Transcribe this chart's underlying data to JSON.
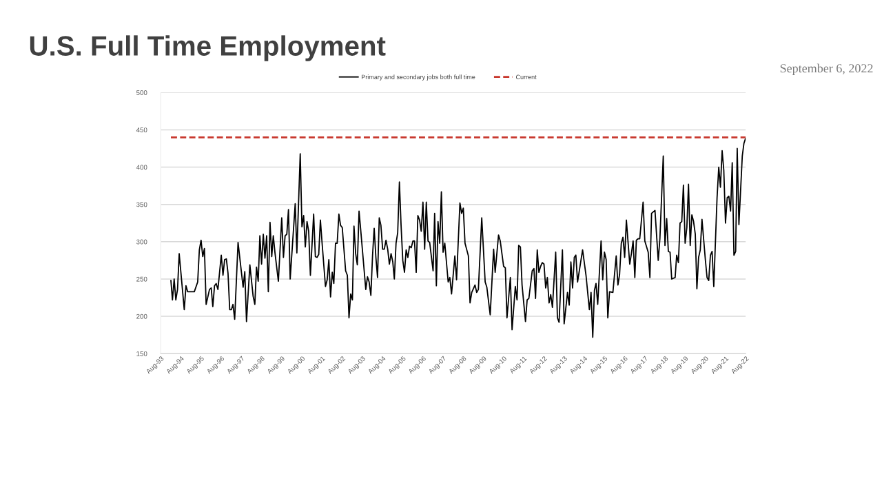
{
  "chart_data": {
    "type": "line",
    "title": "U.S. Full Time Employment",
    "annotations": [
      "September 6, 2022"
    ],
    "xlim": [
      "1993-08",
      "2022-08"
    ],
    "xticks": [
      {
        "value": "1993-08",
        "label": "Aug-93"
      },
      {
        "value": "1994-08",
        "label": "Aug-94"
      },
      {
        "value": "1995-08",
        "label": "Aug-95"
      },
      {
        "value": "1996-08",
        "label": "Aug-96"
      },
      {
        "value": "1997-08",
        "label": "Aug-97"
      },
      {
        "value": "1998-08",
        "label": "Aug-98"
      },
      {
        "value": "1999-08",
        "label": "Aug-99"
      },
      {
        "value": "2000-08",
        "label": "Aug-00"
      },
      {
        "value": "2001-08",
        "label": "Aug-01"
      },
      {
        "value": "2002-08",
        "label": "Aug-02"
      },
      {
        "value": "2003-08",
        "label": "Aug-03"
      },
      {
        "value": "2004-08",
        "label": "Aug-04"
      },
      {
        "value": "2005-08",
        "label": "Aug-05"
      },
      {
        "value": "2006-08",
        "label": "Aug-06"
      },
      {
        "value": "2007-08",
        "label": "Aug-07"
      },
      {
        "value": "2008-08",
        "label": "Aug-08"
      },
      {
        "value": "2009-08",
        "label": "Aug-09"
      },
      {
        "value": "2010-08",
        "label": "Aug-10"
      },
      {
        "value": "2011-08",
        "label": "Aug-11"
      },
      {
        "value": "2012-08",
        "label": "Aug-12"
      },
      {
        "value": "2013-08",
        "label": "Aug-13"
      },
      {
        "value": "2014-08",
        "label": "Aug-14"
      },
      {
        "value": "2015-08",
        "label": "Aug-15"
      },
      {
        "value": "2016-08",
        "label": "Aug-16"
      },
      {
        "value": "2017-08",
        "label": "Aug-17"
      },
      {
        "value": "2018-08",
        "label": "Aug-18"
      },
      {
        "value": "2019-08",
        "label": "Aug-19"
      },
      {
        "value": "2020-08",
        "label": "Aug-20"
      },
      {
        "value": "2021-08",
        "label": "Aug-21"
      },
      {
        "value": "2022-08",
        "label": "Aug-22"
      }
    ],
    "ylim": [
      150,
      500
    ],
    "yticks": [
      150,
      200,
      250,
      300,
      350,
      400,
      450,
      500
    ],
    "grid": "y",
    "legend": "top",
    "series": [
      {
        "name": "Primary and secondary jobs both full time",
        "color": "#000000",
        "line_style": "solid",
        "x": [
          "1994-02",
          "1994-03",
          "1994-04",
          "1994-05",
          "1994-06",
          "1994-07",
          "1994-10",
          "1994-11",
          "1994-12",
          "1995-04",
          "1995-06",
          "1995-07",
          "1995-08",
          "1995-09",
          "1995-10",
          "1995-11",
          "1996-01",
          "1996-02",
          "1996-03",
          "1996-04",
          "1996-05",
          "1996-06",
          "1996-08",
          "1996-09",
          "1996-10",
          "1996-11",
          "1996-12",
          "1997-01",
          "1997-02",
          "1997-03",
          "1997-04",
          "1997-06",
          "1997-08",
          "1997-09",
          "1997-10",
          "1997-11",
          "1998-01",
          "1998-03",
          "1998-04",
          "1998-05",
          "1998-06",
          "1998-07",
          "1998-08",
          "1998-09",
          "1998-10",
          "1998-11",
          "1998-12",
          "1999-01",
          "1999-02",
          "1999-03",
          "1999-04",
          "1999-06",
          "1999-08",
          "1999-09",
          "1999-10",
          "1999-11",
          "1999-12",
          "2000-01",
          "2000-04",
          "2000-05",
          "2000-07",
          "2000-08",
          "2000-09",
          "2000-10",
          "2000-11",
          "2000-12",
          "2001-01",
          "2001-03",
          "2001-04",
          "2001-05",
          "2001-06",
          "2001-07",
          "2001-08",
          "2001-10",
          "2001-11",
          "2001-12",
          "2002-01",
          "2002-02",
          "2002-03",
          "2002-04",
          "2002-05",
          "2002-06",
          "2002-07",
          "2002-08",
          "2002-10",
          "2002-11",
          "2002-12",
          "2003-01",
          "2003-02",
          "2003-03",
          "2003-04",
          "2003-05",
          "2003-06",
          "2003-07",
          "2003-10",
          "2003-11",
          "2003-12",
          "2004-01",
          "2004-02",
          "2004-03",
          "2004-04",
          "2004-05",
          "2004-06",
          "2004-07",
          "2004-08",
          "2004-09",
          "2004-10",
          "2004-11",
          "2004-12",
          "2005-01",
          "2005-02",
          "2005-03",
          "2005-04",
          "2005-05",
          "2005-06",
          "2005-07",
          "2005-08",
          "2005-09",
          "2005-10",
          "2005-11",
          "2005-12",
          "2006-01",
          "2006-02",
          "2006-03",
          "2006-04",
          "2006-05",
          "2006-06",
          "2006-07",
          "2006-08",
          "2006-09",
          "2006-10",
          "2006-11",
          "2006-12",
          "2007-02",
          "2007-03",
          "2007-04",
          "2007-05",
          "2007-06",
          "2007-07",
          "2007-08",
          "2007-09",
          "2007-11",
          "2007-12",
          "2008-01",
          "2008-03",
          "2008-04",
          "2008-06",
          "2008-07",
          "2008-08",
          "2008-09",
          "2008-11",
          "2008-12",
          "2009-01",
          "2009-03",
          "2009-04",
          "2009-05",
          "2009-07",
          "2009-09",
          "2009-10",
          "2009-12",
          "2010-02",
          "2010-03",
          "2010-05",
          "2010-06",
          "2010-08",
          "2010-09",
          "2010-10",
          "2010-12",
          "2011-01",
          "2011-03",
          "2011-04",
          "2011-05",
          "2011-06",
          "2011-07",
          "2011-09",
          "2011-10",
          "2011-11",
          "2012-01",
          "2012-02",
          "2012-03",
          "2012-04",
          "2012-05",
          "2012-06",
          "2012-07",
          "2012-08",
          "2012-09",
          "2012-10",
          "2012-11",
          "2012-12",
          "2013-01",
          "2013-03",
          "2013-04",
          "2013-05",
          "2013-07",
          "2013-08",
          "2013-10",
          "2013-11",
          "2013-12",
          "2014-01",
          "2014-02",
          "2014-03",
          "2014-04",
          "2014-07",
          "2014-09",
          "2014-11",
          "2014-12",
          "2015-01",
          "2015-02",
          "2015-03",
          "2015-04",
          "2015-06",
          "2015-07",
          "2015-08",
          "2015-09",
          "2015-10",
          "2015-11",
          "2016-01",
          "2016-03",
          "2016-04",
          "2016-05",
          "2016-06",
          "2016-07",
          "2016-08",
          "2016-09",
          "2016-11",
          "2016-12",
          "2017-01",
          "2017-02",
          "2017-03",
          "2017-04",
          "2017-05",
          "2017-07",
          "2017-08",
          "2017-10",
          "2017-11",
          "2017-12",
          "2018-02",
          "2018-04",
          "2018-05",
          "2018-07",
          "2018-08",
          "2018-09",
          "2018-10",
          "2018-11",
          "2018-12",
          "2019-02",
          "2019-03",
          "2019-04",
          "2019-05",
          "2019-06",
          "2019-07",
          "2019-08",
          "2019-09",
          "2019-10",
          "2019-11",
          "2019-12",
          "2020-01",
          "2020-02",
          "2020-03",
          "2020-04",
          "2020-05",
          "2020-06",
          "2020-08",
          "2020-09",
          "2020-10",
          "2020-11",
          "2020-12",
          "2021-01",
          "2021-03",
          "2021-04",
          "2021-05",
          "2021-06",
          "2021-07",
          "2021-08",
          "2021-09",
          "2021-10",
          "2021-11",
          "2021-12",
          "2022-01",
          "2022-02",
          "2022-03",
          "2022-04",
          "2022-06",
          "2022-07",
          "2022-08"
        ],
        "values": [
          248,
          222,
          250,
          222,
          236,
          284,
          209,
          241,
          233,
          233,
          246,
          289,
          302,
          280,
          291,
          216,
          236,
          238,
          213,
          241,
          244,
          236,
          282,
          255,
          276,
          277,
          258,
          209,
          209,
          216,
          196,
          299,
          259,
          239,
          260,
          193,
          269,
          227,
          216,
          266,
          247,
          308,
          270,
          310,
          278,
          308,
          233,
          326,
          280,
          308,
          285,
          247,
          332,
          279,
          308,
          310,
          343,
          250,
          351,
          285,
          418,
          320,
          335,
          293,
          327,
          314,
          255,
          337,
          280,
          279,
          283,
          329,
          298,
          240,
          249,
          276,
          226,
          259,
          244,
          298,
          298,
          337,
          322,
          319,
          261,
          255,
          198,
          230,
          222,
          321,
          284,
          269,
          341,
          316,
          236,
          253,
          246,
          228,
          282,
          318,
          279,
          252,
          332,
          322,
          290,
          290,
          302,
          290,
          270,
          284,
          273,
          250,
          298,
          312,
          380,
          322,
          275,
          259,
          289,
          279,
          294,
          292,
          301,
          301,
          259,
          335,
          329,
          314,
          353,
          290,
          353,
          301,
          299,
          261,
          338,
          241,
          327,
          298,
          367,
          286,
          298,
          246,
          252,
          230,
          281,
          249,
          352,
          338,
          345,
          298,
          281,
          218,
          232,
          242,
          232,
          236,
          332,
          246,
          239,
          202,
          290,
          259,
          309,
          301,
          267,
          265,
          198,
          252,
          182,
          240,
          222,
          295,
          293,
          242,
          193,
          222,
          224,
          261,
          264,
          224,
          289,
          259,
          267,
          272,
          270,
          238,
          252,
          218,
          229,
          212,
          286,
          198,
          192,
          289,
          190,
          232,
          215,
          273,
          238,
          279,
          282,
          246,
          289,
          255,
          209,
          232,
          172,
          235,
          244,
          216,
          301,
          249,
          286,
          276,
          198,
          233,
          232,
          281,
          242,
          256,
          298,
          306,
          279,
          329,
          270,
          284,
          301,
          252,
          302,
          304,
          304,
          353,
          301,
          286,
          252,
          338,
          342,
          275,
          304,
          415,
          295,
          331,
          287,
          286,
          250,
          252,
          282,
          272,
          325,
          327,
          376,
          298,
          319,
          377,
          295,
          336,
          327,
          310,
          237,
          279,
          289,
          330,
          276,
          252,
          248,
          282,
          287,
          240,
          359,
          400,
          373,
          422,
          396,
          325,
          359,
          361,
          341,
          406,
          282,
          287,
          425,
          323,
          415,
          432,
          439
        ]
      },
      {
        "name": "Current",
        "color": "#c8372d",
        "line_style": "dashed",
        "x": [
          "1994-02",
          "2022-08"
        ],
        "values": [
          440,
          440
        ]
      }
    ]
  }
}
